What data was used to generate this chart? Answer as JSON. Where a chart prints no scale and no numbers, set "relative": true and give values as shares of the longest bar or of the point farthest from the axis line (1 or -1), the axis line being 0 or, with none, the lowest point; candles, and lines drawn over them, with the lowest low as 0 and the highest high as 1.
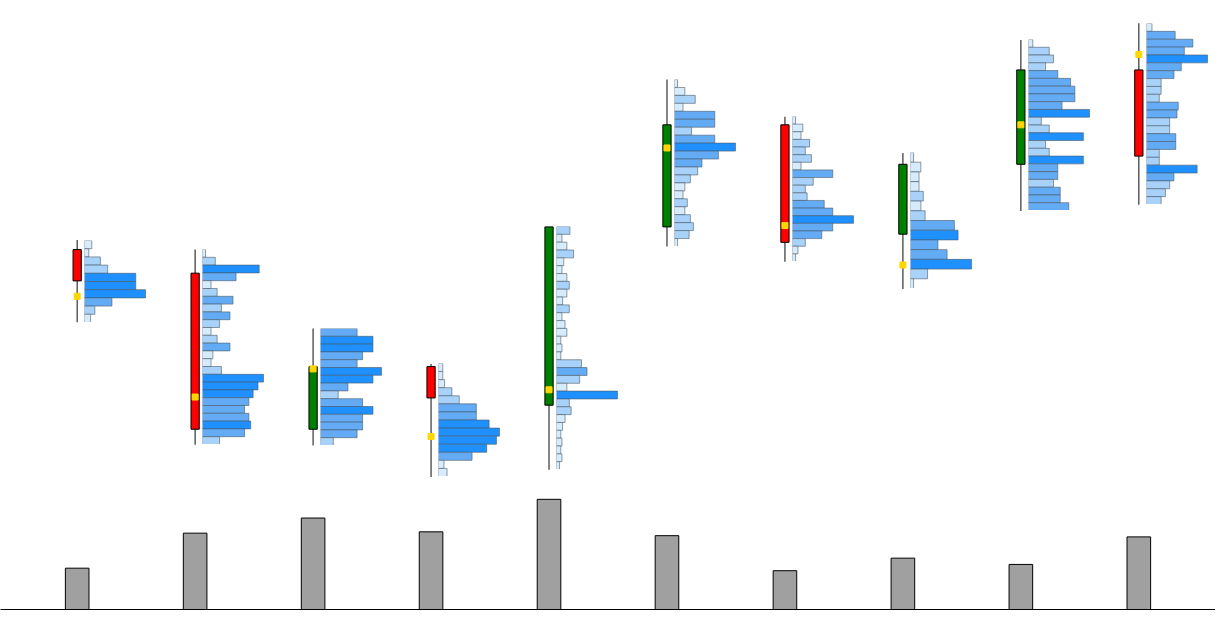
{
  "chart_data": [
    {
      "type": "candlestick",
      "relative": true,
      "categories": [
        null,
        null,
        null,
        null,
        null,
        null,
        null,
        null,
        null,
        null
      ],
      "ohlc": [
        [
          0.501,
          0.522,
          0.341,
          0.432
        ],
        [
          0.449,
          0.501,
          0.071,
          0.105
        ],
        [
          0.105,
          0.327,
          0.069,
          0.243
        ],
        [
          0.243,
          0.249,
          0.0,
          0.174
        ],
        [
          0.158,
          0.551,
          0.016,
          0.551
        ],
        [
          0.551,
          0.876,
          0.508,
          0.776
        ],
        [
          0.776,
          0.794,
          0.474,
          0.517
        ],
        [
          0.535,
          0.714,
          0.414,
          0.689
        ],
        [
          0.689,
          0.963,
          0.586,
          0.897
        ],
        [
          0.897,
          1.0,
          0.6,
          0.707
        ]
      ],
      "colors": [
        "#ff0000",
        "#ff0000",
        "#008000",
        "#ff0000",
        "#008000",
        "#008000",
        "#ff0000",
        "#008000",
        "#008000",
        "#ff0000"
      ],
      "series": [
        {
          "type": "scatter",
          "color": "#ffd700",
          "values": [
            0.398,
            0.176,
            0.238,
            0.089,
            0.192,
            0.725,
            0.554,
            0.467,
            0.776,
            0.931
          ]
        }
      ],
      "marker": "square"
    },
    {
      "type": "bar",
      "relative": true,
      "categories": [
        null,
        null,
        null,
        null,
        null,
        null,
        null,
        null,
        null,
        null
      ],
      "values": [
        0.375,
        0.693,
        0.83,
        0.705,
        1,
        0.67,
        0.352,
        0.466,
        0.409,
        0.659
      ],
      "color": "#a0a0a0"
    },
    {
      "type": "bar",
      "orientation": "horizontal",
      "relative": true,
      "categories": [
        null,
        null,
        null,
        null,
        null,
        null,
        null,
        null,
        null,
        null
      ],
      "values": [
        0.12,
        0.07,
        0.26,
        0.38,
        0.84,
        0.84,
        1,
        0.45,
        0.17,
        0.1
      ],
      "colors": [
        "#d6ebfc",
        "#d6ebfc",
        "#a8d2fa",
        "#a8d2fa",
        "#1e90ff",
        "#1e90ff",
        "#1e90ff",
        "#63acf5",
        "#a8d2fa",
        "#d6ebfc"
      ]
    },
    {
      "type": "bar",
      "orientation": "horizontal",
      "relative": true,
      "categories": [
        null,
        null,
        null,
        null,
        null,
        null,
        null,
        null,
        null,
        null,
        null,
        null,
        null,
        null,
        null,
        null,
        null,
        null,
        null,
        null,
        null,
        null,
        null,
        null,
        null
      ],
      "values": [
        0.05,
        0.21,
        0.93,
        0.55,
        0.14,
        0.24,
        0.5,
        0.31,
        0.45,
        0.28,
        0.14,
        0.24,
        0.45,
        0.17,
        0.14,
        0.31,
        1,
        0.91,
        0.83,
        0.76,
        0.69,
        0.76,
        0.79,
        0.69,
        0.28
      ],
      "colors": [
        "#d6ebfc",
        "#a8d2fa",
        "#1e90ff",
        "#63acf5",
        "#d6ebfc",
        "#a8d2fa",
        "#63acf5",
        "#a8d2fa",
        "#63acf5",
        "#a8d2fa",
        "#d6ebfc",
        "#a8d2fa",
        "#63acf5",
        "#d6ebfc",
        "#d6ebfc",
        "#a8d2fa",
        "#1e90ff",
        "#1e90ff",
        "#1e90ff",
        "#63acf5",
        "#63acf5",
        "#63acf5",
        "#1e90ff",
        "#63acf5",
        "#a8d2fa"
      ]
    },
    {
      "type": "bar",
      "orientation": "horizontal",
      "relative": true,
      "categories": [
        null,
        null,
        null,
        null,
        null,
        null,
        null,
        null,
        null,
        null,
        null,
        null,
        null,
        null,
        null
      ],
      "values": [
        0.6,
        0.86,
        0.86,
        0.69,
        0.6,
        1,
        0.86,
        0.45,
        0.29,
        0.69,
        0.86,
        0.69,
        0.69,
        0.6,
        0.21
      ],
      "colors": [
        "#63acf5",
        "#1e90ff",
        "#1e90ff",
        "#63acf5",
        "#63acf5",
        "#1e90ff",
        "#1e90ff",
        "#63acf5",
        "#a8d2fa",
        "#63acf5",
        "#1e90ff",
        "#63acf5",
        "#63acf5",
        "#63acf5",
        "#a8d2fa"
      ]
    },
    {
      "type": "bar",
      "orientation": "horizontal",
      "relative": true,
      "categories": [
        null,
        null,
        null,
        null,
        null,
        null,
        null,
        null,
        null,
        null,
        null,
        null,
        null,
        null
      ],
      "values": [
        0.07,
        0.07,
        0.1,
        0.22,
        0.34,
        0.62,
        0.62,
        0.83,
        1,
        0.95,
        0.79,
        0.55,
        0.09,
        0.14
      ],
      "colors": [
        "#d6ebfc",
        "#d6ebfc",
        "#d6ebfc",
        "#a8d2fa",
        "#a8d2fa",
        "#63acf5",
        "#63acf5",
        "#1e90ff",
        "#1e90ff",
        "#1e90ff",
        "#1e90ff",
        "#63acf5",
        "#d6ebfc",
        "#d6ebfc"
      ]
    },
    {
      "type": "bar",
      "orientation": "horizontal",
      "relative": true,
      "categories": [
        null,
        null,
        null,
        null,
        null,
        null,
        null,
        null,
        null,
        null,
        null,
        null,
        null,
        null,
        null,
        null,
        null,
        null,
        null,
        null,
        null,
        null,
        null,
        null,
        null,
        null,
        null,
        null,
        null,
        null,
        null
      ],
      "values": [
        0.22,
        0.09,
        0.17,
        0.28,
        0.12,
        0.09,
        0.17,
        0.21,
        0.17,
        0.1,
        0.21,
        0.09,
        0.14,
        0.17,
        0.07,
        0.09,
        0.07,
        0.41,
        0.5,
        0.38,
        0.17,
        1,
        0.21,
        0.24,
        0.14,
        0.1,
        0.07,
        0.09,
        0.07,
        0.09,
        0.05
      ],
      "colors": [
        "#a8d2fa",
        "#d6ebfc",
        "#d6ebfc",
        "#a8d2fa",
        "#d6ebfc",
        "#d6ebfc",
        "#d6ebfc",
        "#a8d2fa",
        "#d6ebfc",
        "#d6ebfc",
        "#a8d2fa",
        "#d6ebfc",
        "#d6ebfc",
        "#d6ebfc",
        "#d6ebfc",
        "#d6ebfc",
        "#d6ebfc",
        "#a8d2fa",
        "#63acf5",
        "#a8d2fa",
        "#d6ebfc",
        "#1e90ff",
        "#a8d2fa",
        "#a8d2fa",
        "#d6ebfc",
        "#d6ebfc",
        "#d6ebfc",
        "#d6ebfc",
        "#d6ebfc",
        "#d6ebfc",
        "#d6ebfc"
      ]
    },
    {
      "type": "bar",
      "orientation": "horizontal",
      "relative": true,
      "categories": [
        null,
        null,
        null,
        null,
        null,
        null,
        null,
        null,
        null,
        null,
        null,
        null,
        null,
        null,
        null,
        null,
        null,
        null,
        null,
        null,
        null
      ],
      "values": [
        0.05,
        0.17,
        0.34,
        0.14,
        0.66,
        0.66,
        0.28,
        0.66,
        1,
        0.72,
        0.45,
        0.38,
        0.26,
        0.17,
        0.14,
        0.21,
        0.17,
        0.26,
        0.31,
        0.24,
        0.05
      ],
      "colors": [
        "#d6ebfc",
        "#d6ebfc",
        "#a8d2fa",
        "#d6ebfc",
        "#63acf5",
        "#63acf5",
        "#a8d2fa",
        "#63acf5",
        "#1e90ff",
        "#63acf5",
        "#63acf5",
        "#a8d2fa",
        "#a8d2fa",
        "#d6ebfc",
        "#d6ebfc",
        "#a8d2fa",
        "#d6ebfc",
        "#a8d2fa",
        "#a8d2fa",
        "#a8d2fa",
        "#d6ebfc"
      ]
    },
    {
      "type": "bar",
      "orientation": "horizontal",
      "relative": true,
      "categories": [
        null,
        null,
        null,
        null,
        null,
        null,
        null,
        null,
        null,
        null,
        null,
        null,
        null,
        null,
        null,
        null,
        null,
        null,
        null
      ],
      "values": [
        0.05,
        0.17,
        0.14,
        0.28,
        0.21,
        0.31,
        0.14,
        0.66,
        0.34,
        0.21,
        0.24,
        0.52,
        0.66,
        1,
        0.66,
        0.48,
        0.21,
        0.09,
        0.05
      ],
      "colors": [
        "#d6ebfc",
        "#d6ebfc",
        "#d6ebfc",
        "#a8d2fa",
        "#a8d2fa",
        "#a8d2fa",
        "#d6ebfc",
        "#63acf5",
        "#a8d2fa",
        "#a8d2fa",
        "#a8d2fa",
        "#63acf5",
        "#63acf5",
        "#1e90ff",
        "#63acf5",
        "#63acf5",
        "#a8d2fa",
        "#d6ebfc",
        "#d6ebfc"
      ]
    },
    {
      "type": "bar",
      "orientation": "horizontal",
      "relative": true,
      "categories": [
        null,
        null,
        null,
        null,
        null,
        null,
        null,
        null,
        null,
        null,
        null,
        null,
        null,
        null
      ],
      "values": [
        0.05,
        0.17,
        0.14,
        0.14,
        0.21,
        0.17,
        0.24,
        0.72,
        0.78,
        0.45,
        0.6,
        1,
        0.28,
        0.05
      ],
      "colors": [
        "#d6ebfc",
        "#d6ebfc",
        "#d6ebfc",
        "#d6ebfc",
        "#a8d2fa",
        "#d6ebfc",
        "#a8d2fa",
        "#63acf5",
        "#1e90ff",
        "#63acf5",
        "#63acf5",
        "#1e90ff",
        "#a8d2fa",
        "#d6ebfc"
      ]
    },
    {
      "type": "bar",
      "orientation": "horizontal",
      "relative": true,
      "categories": [
        null,
        null,
        null,
        null,
        null,
        null,
        null,
        null,
        null,
        null,
        null,
        null,
        null,
        null,
        null,
        null,
        null,
        null,
        null,
        null,
        null,
        null
      ],
      "values": [
        0.07,
        0.34,
        0.41,
        0.28,
        0.48,
        0.69,
        0.76,
        0.76,
        0.55,
        1,
        0.21,
        0.34,
        0.9,
        0.28,
        0.34,
        0.9,
        0.48,
        0.48,
        0.41,
        0.52,
        0.52,
        0.66
      ],
      "colors": [
        "#d6ebfc",
        "#a8d2fa",
        "#a8d2fa",
        "#a8d2fa",
        "#63acf5",
        "#63acf5",
        "#63acf5",
        "#63acf5",
        "#63acf5",
        "#1e90ff",
        "#a8d2fa",
        "#a8d2fa",
        "#1e90ff",
        "#a8d2fa",
        "#a8d2fa",
        "#1e90ff",
        "#63acf5",
        "#63acf5",
        "#a8d2fa",
        "#63acf5",
        "#63acf5",
        "#63acf5"
      ]
    },
    {
      "type": "bar",
      "orientation": "horizontal",
      "relative": true,
      "categories": [
        null,
        null,
        null,
        null,
        null,
        null,
        null,
        null,
        null,
        null,
        null,
        null,
        null,
        null,
        null,
        null,
        null,
        null,
        null,
        null,
        null,
        null,
        null
      ],
      "values": [
        0.09,
        0.47,
        0.76,
        0.62,
        1,
        0.57,
        0.45,
        0.24,
        0.24,
        0.21,
        0.52,
        0.5,
        0.38,
        0.38,
        0.48,
        0.48,
        0.21,
        0.21,
        0.83,
        0.45,
        0.38,
        0.31,
        0.24
      ],
      "colors": [
        "#d6ebfc",
        "#63acf5",
        "#63acf5",
        "#63acf5",
        "#1e90ff",
        "#63acf5",
        "#63acf5",
        "#a8d2fa",
        "#a8d2fa",
        "#a8d2fa",
        "#63acf5",
        "#63acf5",
        "#a8d2fa",
        "#a8d2fa",
        "#63acf5",
        "#63acf5",
        "#a8d2fa",
        "#a8d2fa",
        "#1e90ff",
        "#63acf5",
        "#a8d2fa",
        "#a8d2fa",
        "#a8d2fa"
      ]
    }
  ]
}
